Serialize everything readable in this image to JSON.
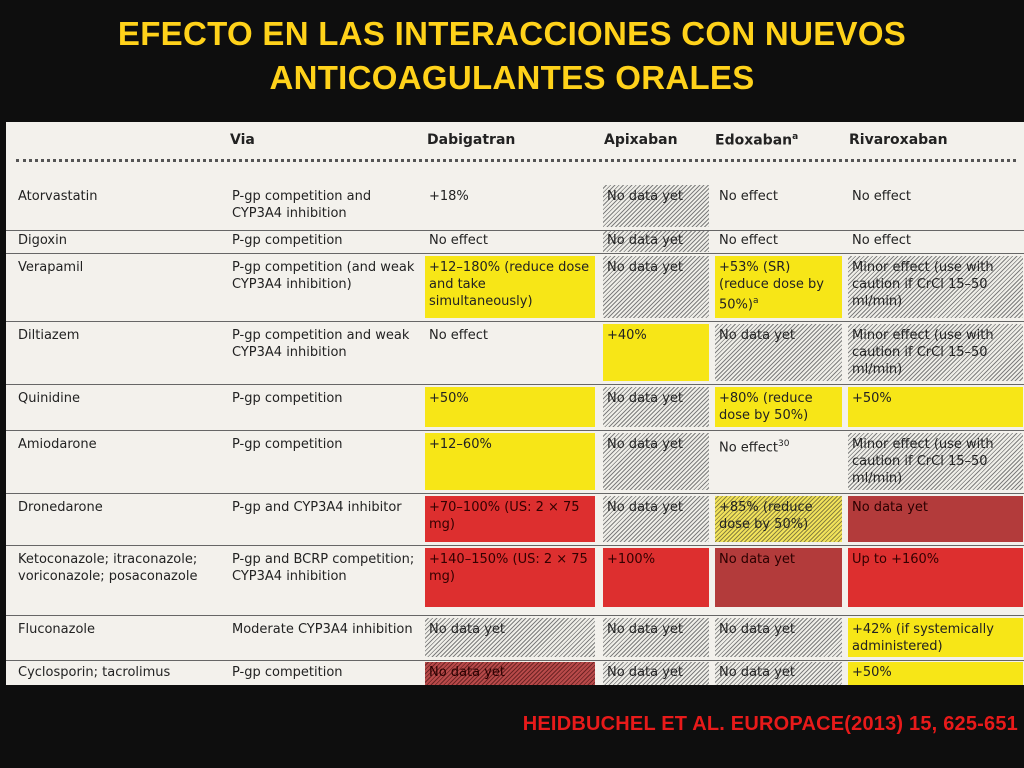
{
  "title": {
    "line1": "EFECTO EN LAS INTERACCIONES CON NUEVOS",
    "line2": "ANTICOAGULANTES ORALES"
  },
  "table": {
    "headers": {
      "via": "Via",
      "dabigatran": "Dabigatran",
      "apixaban": "Apixaban",
      "edoxaban": "Edoxaban",
      "edoxaban_sup": "a",
      "rivaroxaban": "Rivaroxaban"
    },
    "rows": [
      {
        "drug": "Atorvastatin",
        "via": "P-gp competition and CYP3A4 inhibition",
        "dabigatran": "+18%",
        "apixaban": "No data yet",
        "edoxaban": "No effect",
        "rivaroxaban": "No effect"
      },
      {
        "drug": "Digoxin",
        "via": "P-gp competition",
        "dabigatran": "No effect",
        "apixaban": "No data yet",
        "edoxaban": "No effect",
        "rivaroxaban": "No effect"
      },
      {
        "drug": "Verapamil",
        "via": "P-gp competition (and weak CYP3A4 inhibition)",
        "dabigatran": "+12–180% (reduce dose and take simultaneously)",
        "apixaban": "No data yet",
        "edoxaban": "+53% (SR) (reduce dose by 50%)",
        "edoxaban_sup": "a",
        "rivaroxaban": "Minor effect (use with caution if CrCl 15–50 ml/min)"
      },
      {
        "drug": "Diltiazem",
        "via": "P-gp competition and weak CYP3A4 inhibition",
        "dabigatran": "No effect",
        "apixaban": "+40%",
        "edoxaban": "No data yet",
        "rivaroxaban": "Minor effect (use with caution if CrCl 15–50 ml/min)"
      },
      {
        "drug": "Quinidine",
        "via": "P-gp competition",
        "dabigatran": "+50%",
        "apixaban": "No data yet",
        "edoxaban": "+80% (reduce dose by 50%)",
        "rivaroxaban": "+50%"
      },
      {
        "drug": "Amiodarone",
        "via": "P-gp competition",
        "dabigatran": "+12–60%",
        "apixaban": "No data yet",
        "edoxaban": "No effect",
        "edoxaban_sup": "30",
        "rivaroxaban": "Minor effect (use with caution if CrCl 15–50 ml/min)"
      },
      {
        "drug": "Dronedarone",
        "via": "P-gp and CYP3A4 inhibitor",
        "dabigatran": "+70–100% (US: 2 × 75 mg)",
        "apixaban": "No data yet",
        "edoxaban": "+85% (reduce dose by 50%)",
        "rivaroxaban": "No data yet"
      },
      {
        "drug": "Ketoconazole; itraconazole; voriconazole; posaconazole",
        "via": "P-gp and BCRP competition; CYP3A4 inhibition",
        "dabigatran": "+140–150% (US: 2 × 75 mg)",
        "apixaban": "+100%",
        "edoxaban": "No data yet",
        "rivaroxaban": "Up to +160%"
      },
      {
        "drug": "Fluconazole",
        "via": "Moderate CYP3A4 inhibition",
        "dabigatran": "No data yet",
        "apixaban": "No data yet",
        "edoxaban": "No data yet",
        "rivaroxaban": "+42% (if systemically administered)"
      },
      {
        "drug": "Cyclosporin; tacrolimus",
        "via": "P-gp competition",
        "dabigatran": "No data yet",
        "apixaban": "No data yet",
        "edoxaban": "No data yet",
        "rivaroxaban": "+50%"
      }
    ]
  },
  "colors": {
    "title": "#ffd21a",
    "footer": "#e81a1a",
    "yellow": "#f7e617",
    "red": "#dd2f2f",
    "darkred": "#b33b3b"
  },
  "footer": "HEIDBUCHEL ET AL. EUROPACE(2013) 15, 625-651"
}
